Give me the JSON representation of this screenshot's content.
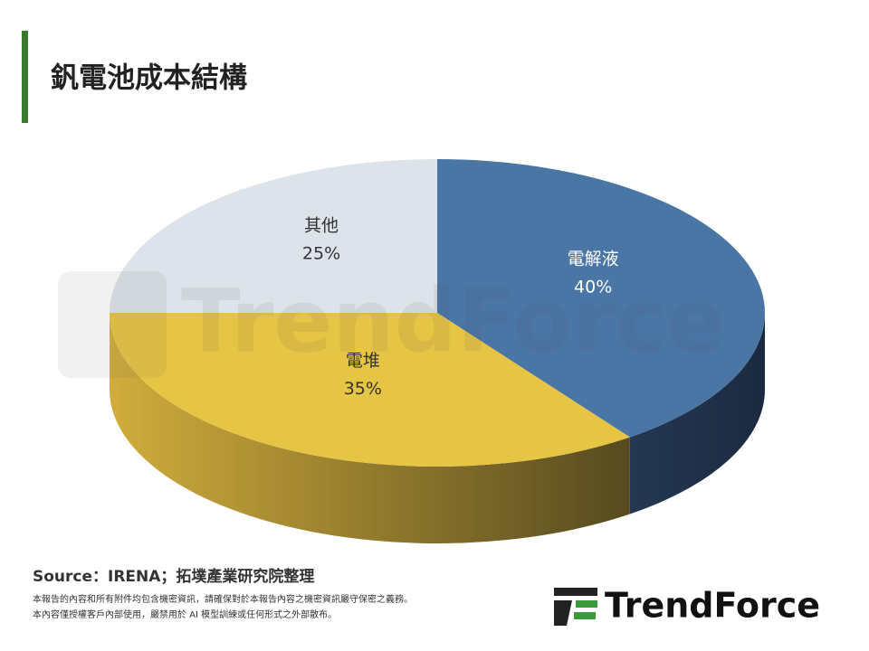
{
  "chart_data": {
    "type": "pie3d",
    "title": "釩電池成本結構",
    "categories": [
      "電解液",
      "電堆",
      "其他"
    ],
    "values": [
      40,
      35,
      25
    ],
    "value_labels": [
      "40%",
      "35%",
      "25%"
    ],
    "colors": [
      "#4a76a6",
      "#e6c444",
      "#dde3ea"
    ]
  },
  "footer": {
    "source": "Source：IRENA；拓墣產業研究院整理",
    "disclaimer": [
      "本報告的內容和所有附件均包含機密資訊，請確保對於本報告內容之機密資訊嚴守保密之義務。",
      "本內容僅授權客戶內部使用，嚴禁用於 AI 模型訓練或任何形式之外部散布。"
    ],
    "logo": "TrendForce"
  }
}
